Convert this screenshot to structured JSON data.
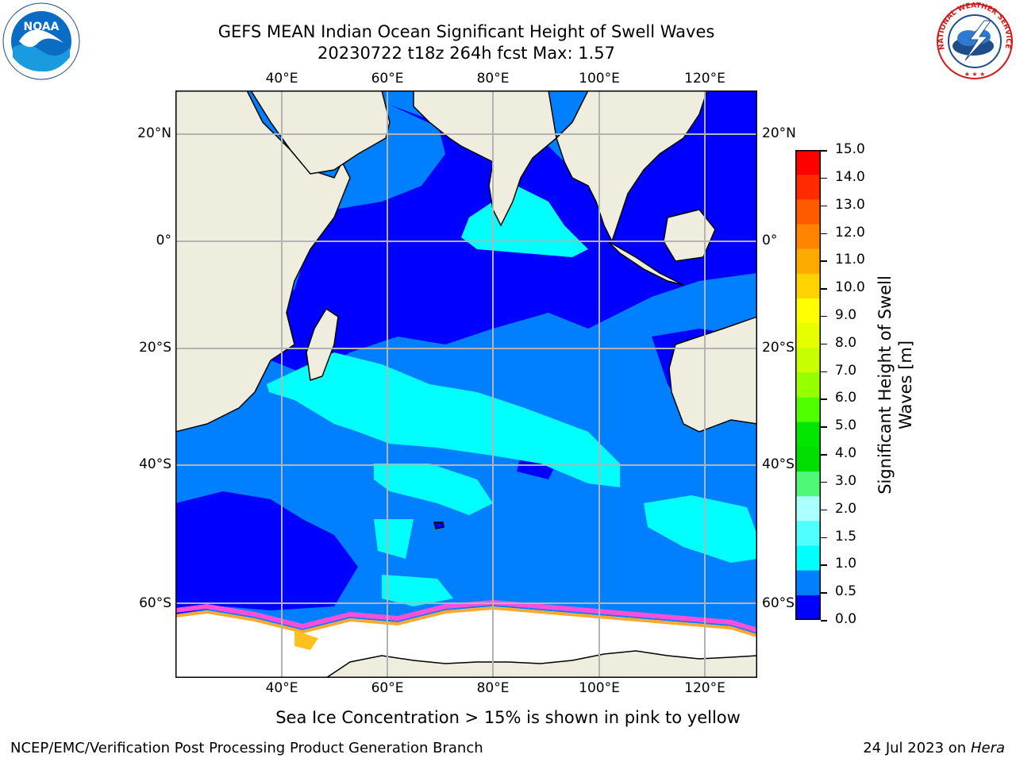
{
  "title": {
    "line1": "GEFS MEAN Indian Ocean Significant Height of Swell Waves",
    "line2": "20230722 t18z 264h fcst   Max: 1.57"
  },
  "map": {
    "lon_ticks": [
      "40°E",
      "60°E",
      "80°E",
      "100°E",
      "120°E"
    ],
    "lat_ticks": [
      "20°N",
      "0°",
      "20°S",
      "40°S",
      "60°S"
    ],
    "lon_range": [
      20,
      130
    ],
    "lat_range": [
      -71,
      28
    ],
    "colors": {
      "land": "#efedde",
      "ice": "#ffffff",
      "grid": "#b4b4b4"
    }
  },
  "colorbar": {
    "title_line1": "Significant Height of Swell",
    "title_line2": "Waves [m]",
    "ticks": [
      "15.0",
      "14.0",
      "13.0",
      "12.0",
      "11.0",
      "10.0",
      "9.0",
      "8.0",
      "7.0",
      "6.0",
      "5.0",
      "4.0",
      "3.0",
      "2.0",
      "1.5",
      "1.0",
      "0.5",
      "0.0"
    ],
    "colors_top_down": [
      "#ff0000",
      "#ff2a00",
      "#ff5a00",
      "#ff8400",
      "#ffaa00",
      "#ffd200",
      "#ffff00",
      "#e6ff00",
      "#c8ff00",
      "#96ff00",
      "#50ff00",
      "#00e600",
      "#00dd00",
      "#50f878",
      "#aaffff",
      "#50ffff",
      "#00ffff",
      "#0080ff",
      "#0000ff"
    ]
  },
  "note": "Sea Ice Concentration > 15% is shown in pink to yellow",
  "footer": {
    "left": "NCEP/EMC/Verification Post Processing Product Generation Branch",
    "right_prefix": "24 Jul 2023 on ",
    "right_host": "Hera"
  },
  "logos": {
    "noaa_text": "NOAA",
    "nws_text": "NATIONAL WEATHER SERVICE"
  }
}
